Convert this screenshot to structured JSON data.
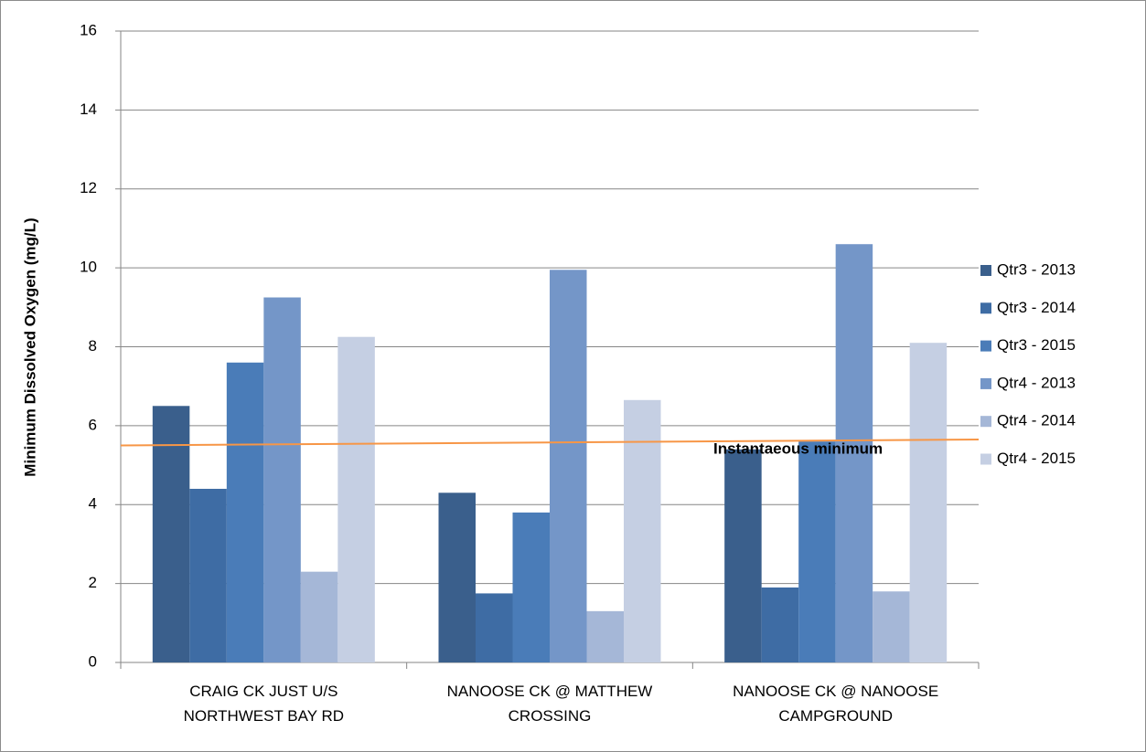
{
  "chart_data": {
    "type": "bar",
    "y_label": "Minimum Dissolved Oxygen (mg/L)",
    "categories": [
      "CRAIG CK JUST U/S\nNORTHWEST BAY RD",
      "NANOOSE CK @ MATTHEW\nCROSSING",
      "NANOOSE CK @ NANOOSE\nCAMPGROUND"
    ],
    "series": [
      {
        "name": "Qtr3 - 2013",
        "color": "#3a5f8c",
        "values": [
          6.5,
          4.3,
          5.4
        ]
      },
      {
        "name": "Qtr3 - 2014",
        "color": "#3e6ca4",
        "values": [
          4.4,
          1.75,
          1.9
        ]
      },
      {
        "name": "Qtr3 - 2015",
        "color": "#4a7cb8",
        "values": [
          7.6,
          3.8,
          5.6
        ]
      },
      {
        "name": "Qtr4 - 2013",
        "color": "#7496c8",
        "values": [
          9.25,
          9.95,
          10.6
        ]
      },
      {
        "name": "Qtr4 - 2014",
        "color": "#a5b7d7",
        "values": [
          2.3,
          1.3,
          1.8
        ]
      },
      {
        "name": "Qtr4 - 2015",
        "color": "#c5cfe3",
        "values": [
          8.25,
          6.65,
          8.1
        ]
      }
    ],
    "threshold": {
      "label": "Instantaeous minimum",
      "color": "#f79646",
      "values": [
        5.5,
        5.65
      ]
    },
    "ylim": [
      0,
      16
    ],
    "yticks": [
      0,
      2,
      4,
      6,
      8,
      10,
      12,
      14,
      16
    ],
    "grid": true,
    "legend": "right"
  }
}
